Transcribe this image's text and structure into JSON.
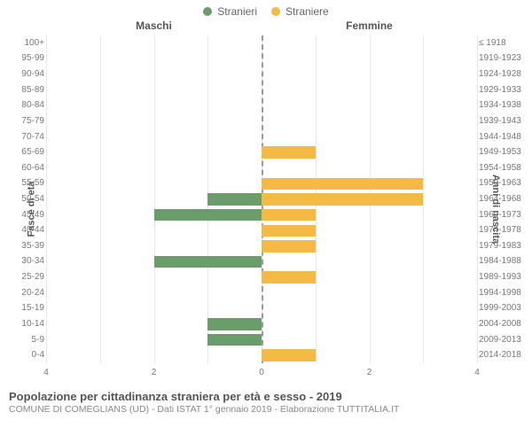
{
  "legend": {
    "male": {
      "label": "Stranieri",
      "color": "#6b9c6b"
    },
    "female": {
      "label": "Straniere",
      "color": "#f5b946"
    }
  },
  "columns": {
    "left": "Maschi",
    "right": "Femmine"
  },
  "axes": {
    "left_title": "Fasce di età",
    "right_title": "Anni di nascita",
    "x_max": 4,
    "x_ticks": [
      4,
      2,
      0,
      2,
      4
    ],
    "grid_color": "#e6e6e6",
    "center_dash_color": "#999999"
  },
  "chart": {
    "type": "population-pyramid",
    "row_height_pct": 4.7619,
    "background": "#ffffff",
    "rows": [
      {
        "age": "100+",
        "birth": "≤ 1918",
        "m": 0,
        "f": 0
      },
      {
        "age": "95-99",
        "birth": "1919-1923",
        "m": 0,
        "f": 0
      },
      {
        "age": "90-94",
        "birth": "1924-1928",
        "m": 0,
        "f": 0
      },
      {
        "age": "85-89",
        "birth": "1929-1933",
        "m": 0,
        "f": 0
      },
      {
        "age": "80-84",
        "birth": "1934-1938",
        "m": 0,
        "f": 0
      },
      {
        "age": "75-79",
        "birth": "1939-1943",
        "m": 0,
        "f": 0
      },
      {
        "age": "70-74",
        "birth": "1944-1948",
        "m": 0,
        "f": 0
      },
      {
        "age": "65-69",
        "birth": "1949-1953",
        "m": 0,
        "f": 1
      },
      {
        "age": "60-64",
        "birth": "1954-1958",
        "m": 0,
        "f": 0
      },
      {
        "age": "55-59",
        "birth": "1959-1963",
        "m": 0,
        "f": 3
      },
      {
        "age": "50-54",
        "birth": "1964-1968",
        "m": 1,
        "f": 3
      },
      {
        "age": "45-49",
        "birth": "1969-1973",
        "m": 2,
        "f": 1
      },
      {
        "age": "40-44",
        "birth": "1974-1978",
        "m": 0,
        "f": 1
      },
      {
        "age": "35-39",
        "birth": "1979-1983",
        "m": 0,
        "f": 1
      },
      {
        "age": "30-34",
        "birth": "1984-1988",
        "m": 2,
        "f": 0
      },
      {
        "age": "25-29",
        "birth": "1989-1993",
        "m": 0,
        "f": 1
      },
      {
        "age": "20-24",
        "birth": "1994-1998",
        "m": 0,
        "f": 0
      },
      {
        "age": "15-19",
        "birth": "1999-2003",
        "m": 0,
        "f": 0
      },
      {
        "age": "10-14",
        "birth": "2004-2008",
        "m": 1,
        "f": 0
      },
      {
        "age": "5-9",
        "birth": "2009-2013",
        "m": 1,
        "f": 0
      },
      {
        "age": "0-4",
        "birth": "2014-2018",
        "m": 0,
        "f": 1
      }
    ]
  },
  "footer": {
    "title": "Popolazione per cittadinanza straniera per età e sesso - 2019",
    "subtitle": "COMUNE DI COMEGLIANS (UD) - Dati ISTAT 1° gennaio 2019 - Elaborazione TUTTITALIA.IT"
  }
}
